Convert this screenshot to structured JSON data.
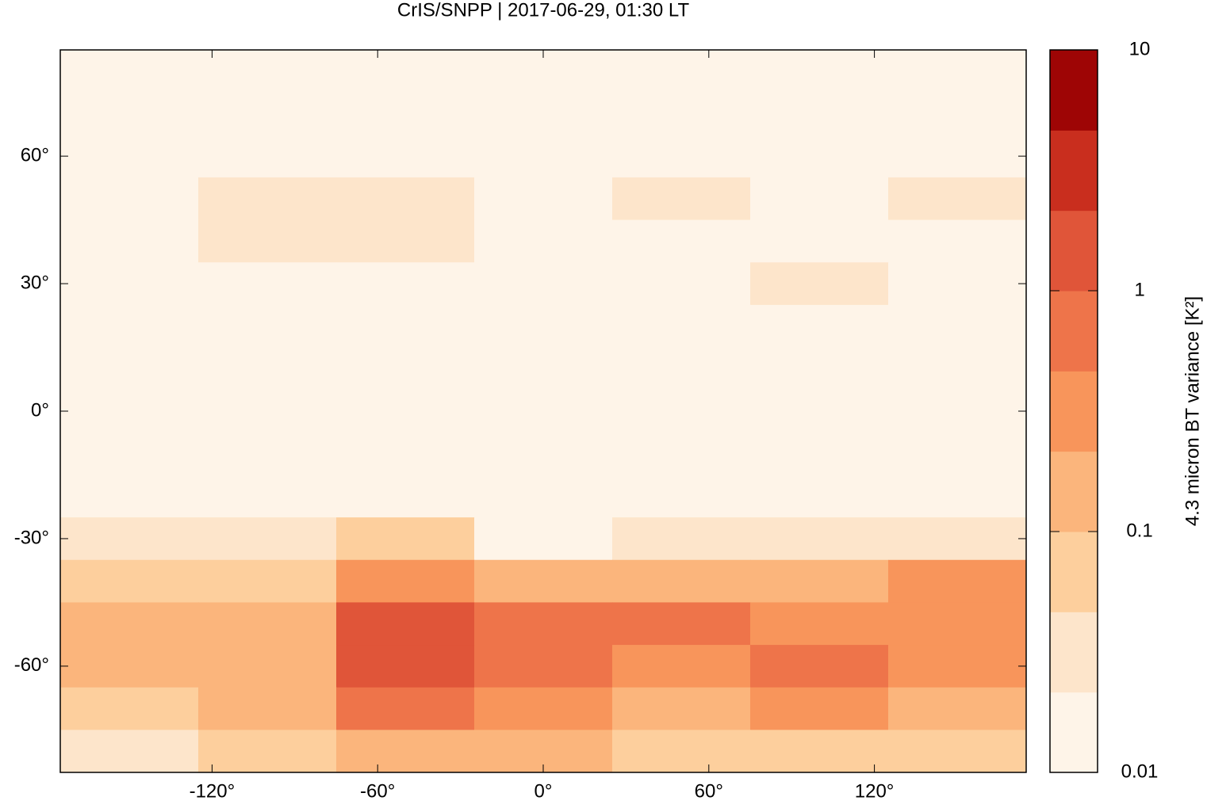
{
  "chart_data": {
    "type": "heatmap",
    "title": "CrIS/SNPP | 2017-06-29, 01:30 LT",
    "colorbar_label": "4.3 micron BT variance [K²]",
    "x": [
      -150,
      -100,
      -50,
      0,
      50,
      100,
      150
    ],
    "y": [
      80,
      70,
      60,
      50,
      40,
      30,
      20,
      10,
      0,
      -10,
      -20,
      -30,
      -40,
      -50,
      -60,
      -70,
      -80
    ],
    "values": [
      [
        0.01,
        0.01,
        0.01,
        0.01,
        0.01,
        0.01,
        0.01
      ],
      [
        0.01,
        0.01,
        0.012,
        0.01,
        0.012,
        0.01,
        0.01
      ],
      [
        0.01,
        0.012,
        0.015,
        0.012,
        0.02,
        0.012,
        0.012
      ],
      [
        0.012,
        0.025,
        0.03,
        0.012,
        0.025,
        0.02,
        0.025
      ],
      [
        0.012,
        0.025,
        0.025,
        0.012,
        0.015,
        0.02,
        0.02
      ],
      [
        0.012,
        0.015,
        0.015,
        0.01,
        0.015,
        0.025,
        0.015
      ],
      [
        0.012,
        0.012,
        0.012,
        0.01,
        0.012,
        0.02,
        0.012
      ],
      [
        0.01,
        0.01,
        0.01,
        0.01,
        0.01,
        0.012,
        0.012
      ],
      [
        0.01,
        0.01,
        0.01,
        0.01,
        0.01,
        0.01,
        0.012
      ],
      [
        0.01,
        0.01,
        0.01,
        0.01,
        0.01,
        0.01,
        0.012
      ],
      [
        0.012,
        0.012,
        0.012,
        0.01,
        0.01,
        0.012,
        0.015
      ],
      [
        0.03,
        0.03,
        0.05,
        0.02,
        0.025,
        0.03,
        0.04
      ],
      [
        0.06,
        0.05,
        0.3,
        0.12,
        0.15,
        0.15,
        0.25
      ],
      [
        0.1,
        0.1,
        1,
        0.5,
        0.5,
        0.35,
        0.4
      ],
      [
        0.1,
        0.1,
        1.5,
        0.6,
        0.4,
        0.5,
        0.3
      ],
      [
        0.08,
        0.1,
        0.8,
        0.4,
        0.2,
        0.3,
        0.2
      ],
      [
        0.03,
        0.05,
        0.2,
        0.1,
        0.05,
        0.05,
        0.05
      ]
    ],
    "xlim": [
      -175,
      175
    ],
    "ylim": [
      -85,
      85
    ],
    "xticks": [
      {
        "value": -120,
        "label": "-120°"
      },
      {
        "value": -60,
        "label": "-60°"
      },
      {
        "value": 0,
        "label": "0°"
      },
      {
        "value": 60,
        "label": "60°"
      },
      {
        "value": 120,
        "label": "120°"
      }
    ],
    "yticks": [
      {
        "value": -60,
        "label": "-60°"
      },
      {
        "value": -30,
        "label": "-30°"
      },
      {
        "value": 0,
        "label": "0°"
      },
      {
        "value": 30,
        "label": "30°"
      },
      {
        "value": 60,
        "label": "60°"
      }
    ],
    "clim": [
      0.01,
      10
    ],
    "clog": true,
    "cticks": [
      0.01,
      0.1,
      1,
      10
    ],
    "colors": [
      "#fef4e8",
      "#fde5cb",
      "#fdcf9d",
      "#fbb57c",
      "#f8955b",
      "#ee744a",
      "#e05539",
      "#c92e1e",
      "#9e0505"
    ]
  }
}
